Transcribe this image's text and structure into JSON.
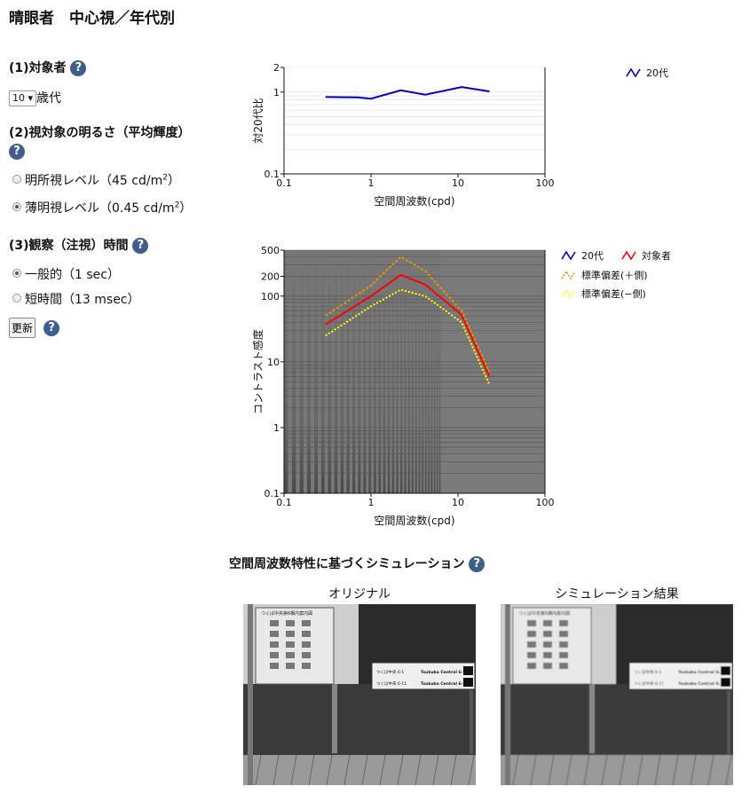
{
  "page": {
    "title": "晴眼者　中心視／年代別"
  },
  "sections": {
    "subject": {
      "label": "(1)対象者",
      "age_value": "10",
      "age_unit": "歳代"
    },
    "brightness": {
      "label": "(2)視対象の明るさ（平均輝度）",
      "options": [
        {
          "text": "明所視レベル（45 cd/m",
          "sup": "2",
          "close": "）",
          "selected": false
        },
        {
          "text": "薄明視レベル（0.45 cd/m",
          "sup": "2",
          "close": "）",
          "selected": true
        }
      ]
    },
    "duration": {
      "label": "(3)観察（注視）時間",
      "options": [
        {
          "text": "一般的（1 sec）",
          "selected": true
        },
        {
          "text": "短時間（13 msec）",
          "selected": false
        }
      ]
    },
    "update_button": "更新"
  },
  "help_icon": "?",
  "chart_data": [
    {
      "type": "line",
      "xlabel": "空間周波数(cpd)",
      "ylabel": "対20代比",
      "xscale": "log",
      "yscale": "log",
      "xlim": [
        0.1,
        100
      ],
      "ylim": [
        0.1,
        2
      ],
      "xticks": [
        "0.1",
        "1",
        "10",
        "100"
      ],
      "yticks": [
        "0.1",
        "1",
        "2"
      ],
      "legend_position": "right",
      "series": [
        {
          "name": "20代",
          "color": "#0000bb",
          "x": [
            0.3,
            0.7,
            1.0,
            2.2,
            4.2,
            11,
            23
          ],
          "y": [
            0.87,
            0.86,
            0.83,
            1.05,
            0.93,
            1.15,
            1.02
          ]
        }
      ]
    },
    {
      "type": "line",
      "xlabel": "空間周波数(cpd)",
      "ylabel": "コントラスト感度",
      "xscale": "log",
      "yscale": "log",
      "xlim": [
        0.1,
        100
      ],
      "ylim": [
        0.1,
        500
      ],
      "xticks": [
        "0.1",
        "1",
        "10",
        "100"
      ],
      "yticks": [
        "0.1",
        "1",
        "10",
        "100",
        "200",
        "500"
      ],
      "legend_position": "right",
      "background": "contrast-sensitivity-grating",
      "series": [
        {
          "name": "20代",
          "color": "#0000bb",
          "style": "solid",
          "x": [],
          "y": []
        },
        {
          "name": "対象者",
          "color": "#ff0000",
          "style": "solid",
          "x": [
            0.3,
            1.0,
            2.2,
            4.2,
            11,
            23
          ],
          "y": [
            37,
            100,
            210,
            150,
            52,
            6
          ]
        },
        {
          "name": "標準偏差(＋側)",
          "color": "#e69500",
          "style": "dashed",
          "x": [
            0.3,
            1.0,
            2.2,
            4.2,
            11,
            23
          ],
          "y": [
            50,
            145,
            400,
            240,
            60,
            7
          ]
        },
        {
          "name": "標準偏差(−側)",
          "color": "#ffff00",
          "style": "dotted",
          "x": [
            0.3,
            1.0,
            2.2,
            4.2,
            11,
            23
          ],
          "y": [
            25,
            70,
            125,
            100,
            40,
            4.5
          ]
        }
      ]
    }
  ],
  "simulation": {
    "title": "空間周波数特性に基づくシミュレーション",
    "original_label": "オリジナル",
    "result_label": "シミュレーション結果",
    "sign_header": "つくば中央第6構内案内図",
    "sign_row1_left": "つくば中央 6-1",
    "sign_row1_right": "Tsukuba Central 6-1",
    "sign_row2_left": "つくば中央 6-11",
    "sign_row2_right": "Tsukuba Central 6-11"
  },
  "icons": {
    "help": "help-circle-icon",
    "dropdown": "chevron-down-icon"
  }
}
